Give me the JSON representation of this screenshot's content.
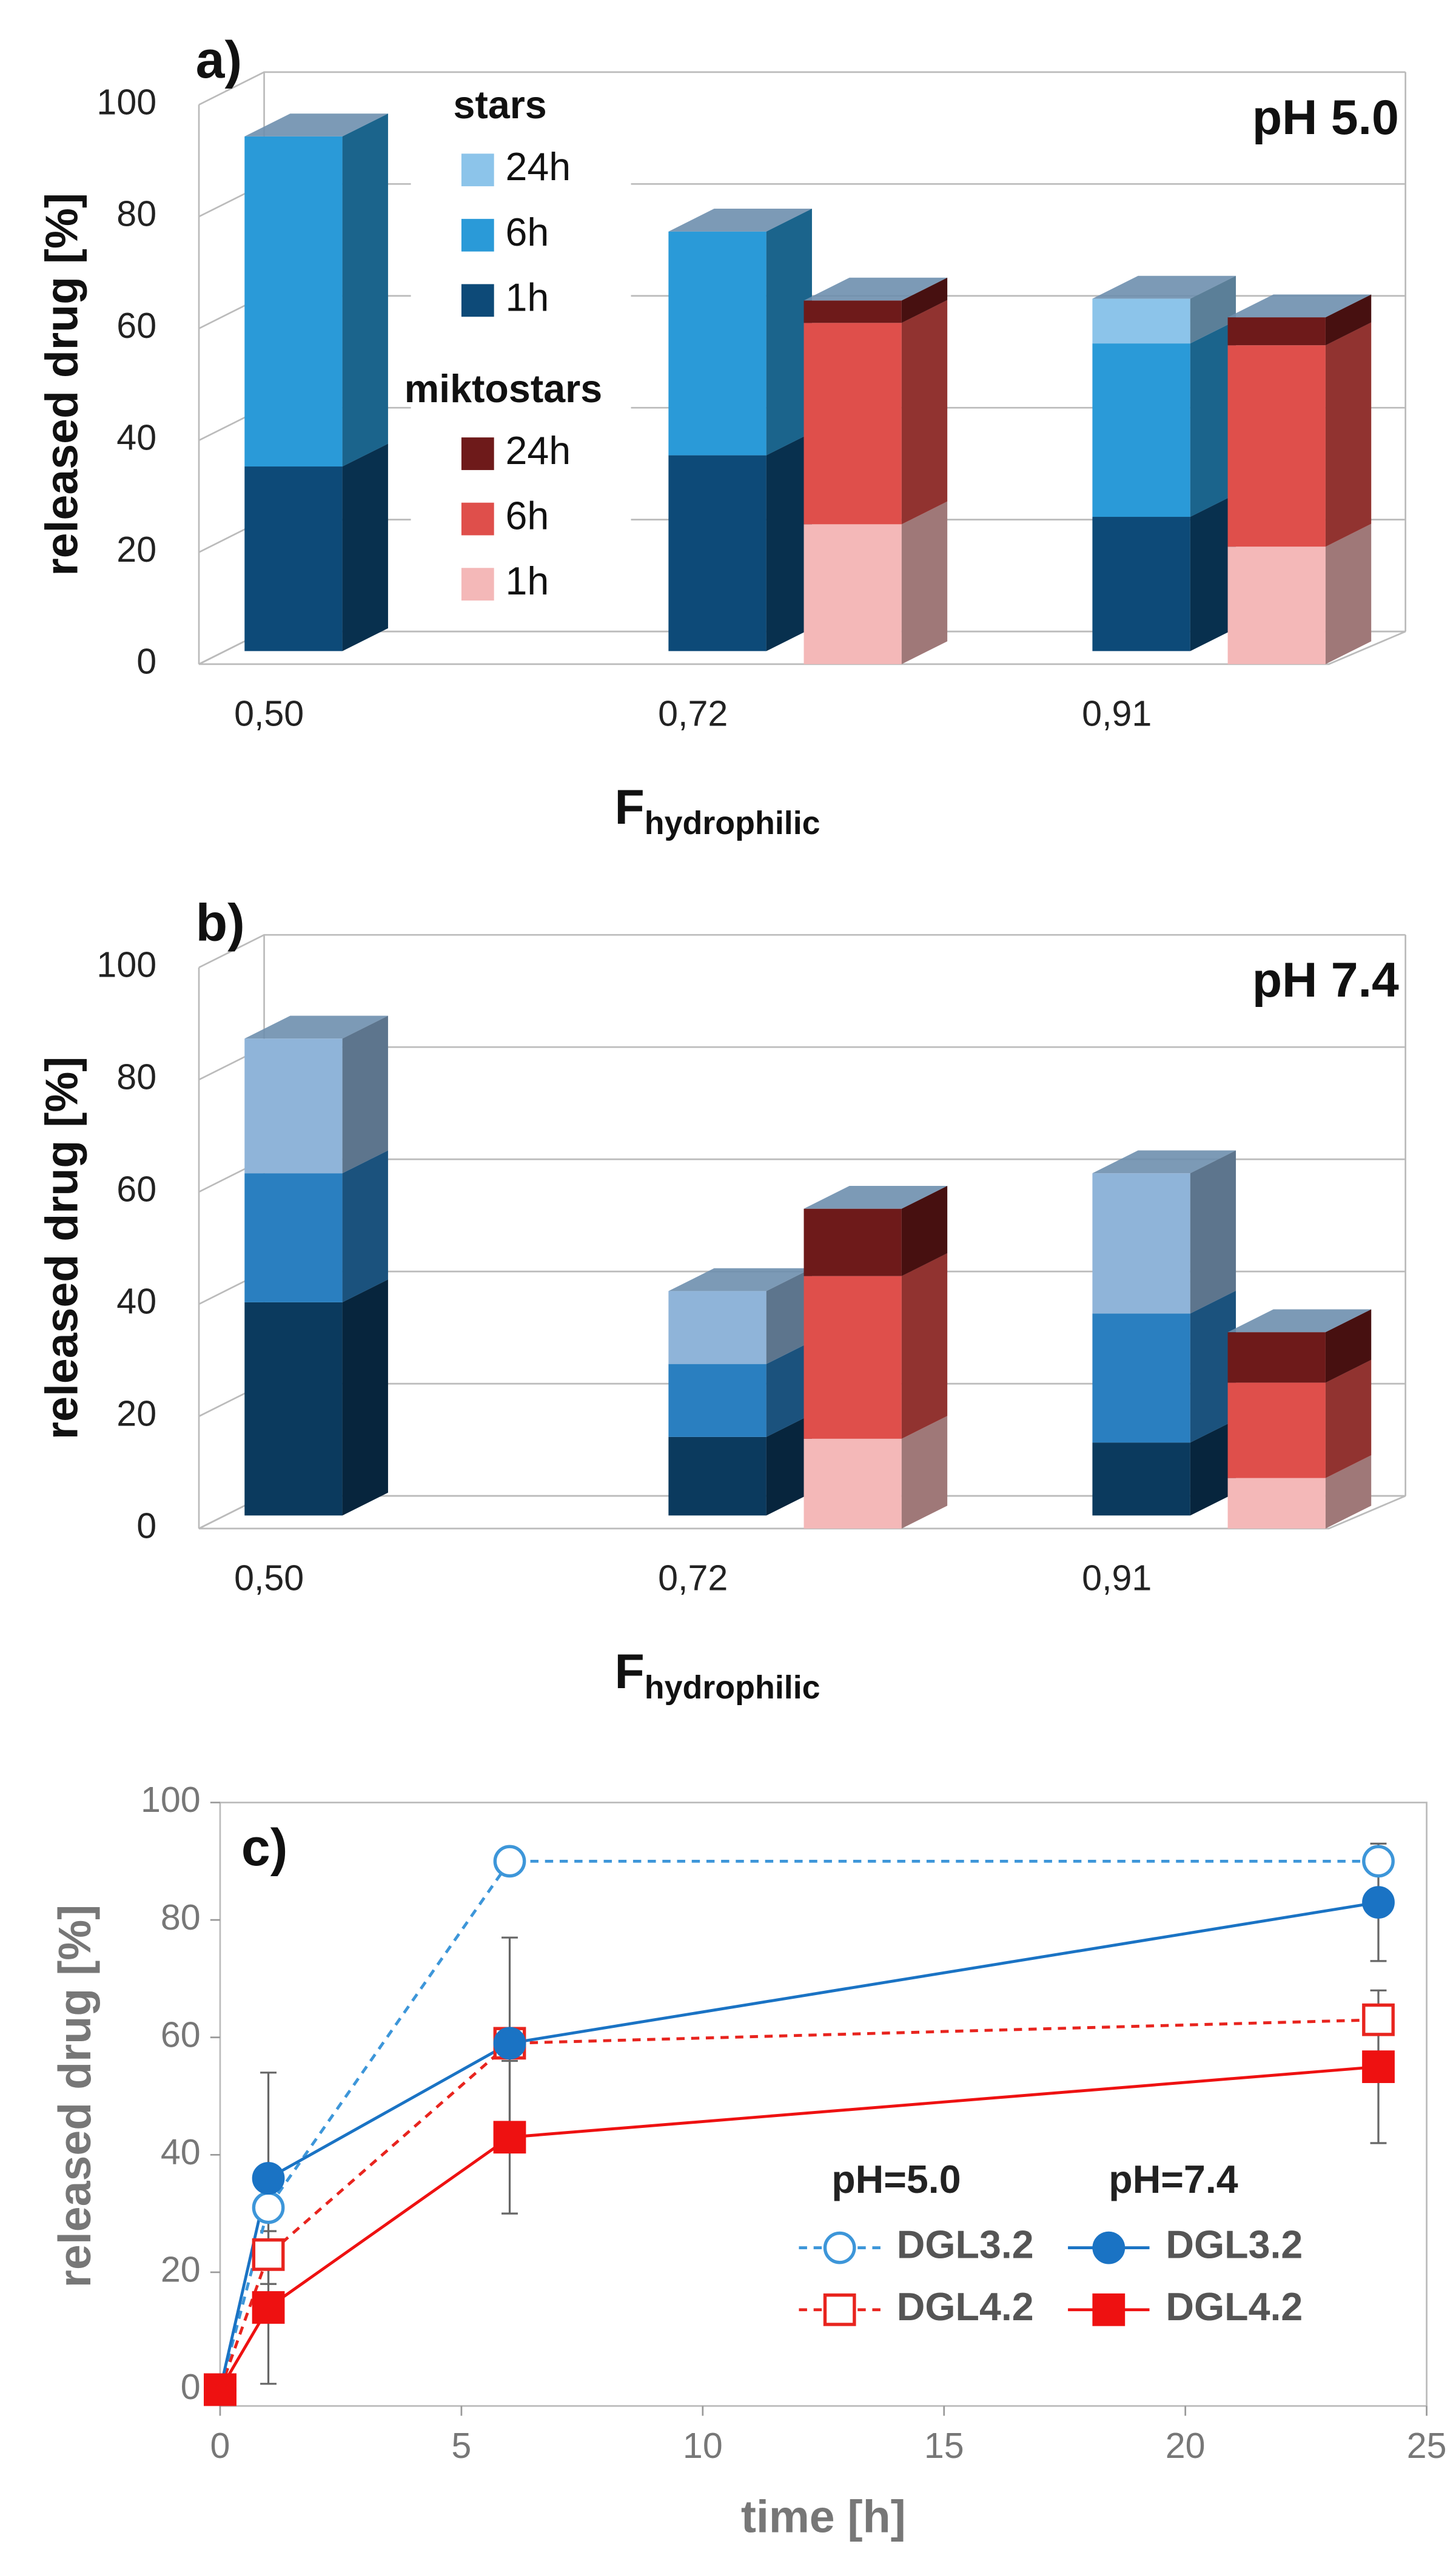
{
  "chart_data": [
    {
      "type": "bar3d",
      "panel": "a)",
      "annotation": "pH 5.0",
      "ylabel": "released drug [%]",
      "xlabel": "F",
      "xlabel_sub": "hydrophilic",
      "categories": [
        "0,50",
        "0,72",
        "0,91"
      ],
      "ylim": [
        0,
        100
      ],
      "yticks": [
        0,
        20,
        40,
        60,
        80,
        100
      ],
      "legend": true,
      "groups": [
        {
          "name": "stars",
          "series": [
            {
              "name": "1h",
              "color": "#0d4a78",
              "values": [
                33,
                35,
                24
              ]
            },
            {
              "name": "6h",
              "color": "#2a9ad8",
              "values": [
                59,
                40,
                31
              ]
            },
            {
              "name": "24h",
              "color": "#8cc4ea",
              "values": [
                0,
                0,
                8
              ]
            }
          ]
        },
        {
          "name": "miktostars",
          "series": [
            {
              "name": "1h",
              "color": "#f4b8b8",
              "values": [
                null,
                25,
                21
              ]
            },
            {
              "name": "6h",
              "color": "#df4f4b",
              "values": [
                null,
                36,
                36
              ]
            },
            {
              "name": "24h",
              "color": "#6e1a1a",
              "values": [
                null,
                4,
                5
              ]
            }
          ]
        }
      ]
    },
    {
      "type": "bar3d",
      "panel": "b)",
      "annotation": "pH 7.4",
      "ylabel": "released drug [%]",
      "xlabel": "F",
      "xlabel_sub": "hydrophilic",
      "categories": [
        "0,50",
        "0,72",
        "0,91"
      ],
      "ylim": [
        0,
        100
      ],
      "yticks": [
        0,
        20,
        40,
        60,
        80,
        100
      ],
      "legend": false,
      "groups": [
        {
          "series": [
            {
              "color": "#0b3a5e",
              "values": [
                38,
                14,
                13
              ]
            },
            {
              "color": "#2a7fc0",
              "values": [
                23,
                13,
                23
              ]
            },
            {
              "color": "#8fb4d9",
              "values": [
                24,
                13,
                25
              ]
            }
          ]
        },
        {
          "series": [
            {
              "color": "#f4b8b8",
              "values": [
                null,
                16,
                9
              ]
            },
            {
              "color": "#df4f4b",
              "values": [
                null,
                29,
                17
              ]
            },
            {
              "color": "#6e1a1a",
              "values": [
                null,
                12,
                9
              ]
            }
          ]
        }
      ]
    },
    {
      "type": "line",
      "panel": "c)",
      "xlabel": "time [h]",
      "ylabel": "released drug [%]",
      "xlim": [
        0,
        25
      ],
      "xticks": [
        0,
        5,
        10,
        15,
        20,
        25
      ],
      "ylim": [
        0,
        100
      ],
      "yticks": [
        0,
        20,
        40,
        60,
        80,
        100
      ],
      "legend_titles": [
        "pH=5.0",
        "pH=7.4"
      ],
      "x": [
        0,
        1,
        6,
        24
      ],
      "series": [
        {
          "name": "DGL3.2",
          "color": "#3d96d9",
          "marker": "circle",
          "filled": false,
          "dash": true,
          "values": [
            0,
            31,
            90,
            90
          ]
        },
        {
          "name": "DGL4.2",
          "color": "#e8241e",
          "marker": "square",
          "filled": false,
          "dash": true,
          "values": [
            0,
            23,
            59,
            63
          ]
        },
        {
          "name": "DGL3.2",
          "color": "#1a73c4",
          "marker": "circle",
          "filled": true,
          "dash": false,
          "values": [
            0,
            36,
            59,
            83
          ],
          "errors": [
            0,
            18,
            18,
            10
          ]
        },
        {
          "name": "DGL4.2",
          "color": "#ee1111",
          "marker": "square",
          "filled": true,
          "dash": false,
          "values": [
            0,
            14,
            43,
            55
          ],
          "errors": [
            0,
            13,
            13,
            13
          ]
        }
      ]
    }
  ]
}
